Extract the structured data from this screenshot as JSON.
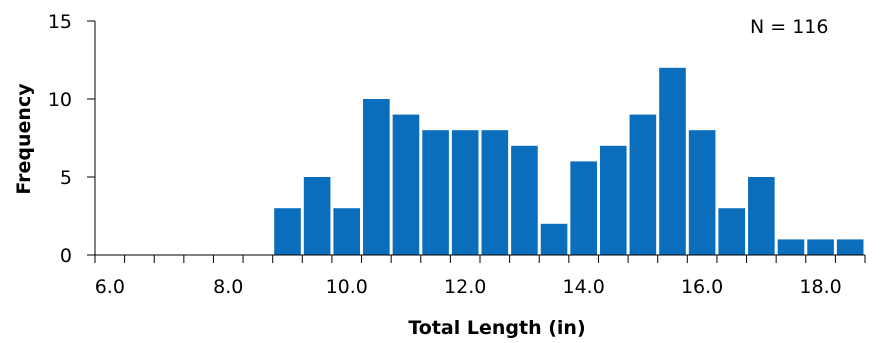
{
  "chart_data": {
    "type": "bar",
    "xlabel": "Total Length (in)",
    "ylabel": "Frequency",
    "annotation": "N = 116",
    "bin_width": 0.5,
    "xlim": [
      5.75,
      18.75
    ],
    "ylim": [
      0,
      15
    ],
    "x_ticks": [
      "6.0",
      "8.0",
      "10.0",
      "12.0",
      "14.0",
      "16.0",
      "18.0"
    ],
    "y_ticks": [
      "0",
      "5",
      "10",
      "15"
    ],
    "bins": [
      {
        "x": 9.0,
        "value": 3
      },
      {
        "x": 9.5,
        "value": 5
      },
      {
        "x": 10.0,
        "value": 3
      },
      {
        "x": 10.5,
        "value": 10
      },
      {
        "x": 11.0,
        "value": 9
      },
      {
        "x": 11.5,
        "value": 8
      },
      {
        "x": 12.0,
        "value": 8
      },
      {
        "x": 12.5,
        "value": 8
      },
      {
        "x": 13.0,
        "value": 7
      },
      {
        "x": 13.5,
        "value": 2
      },
      {
        "x": 14.0,
        "value": 6
      },
      {
        "x": 14.5,
        "value": 7
      },
      {
        "x": 15.0,
        "value": 9
      },
      {
        "x": 15.5,
        "value": 12
      },
      {
        "x": 16.0,
        "value": 8
      },
      {
        "x": 16.5,
        "value": 3
      },
      {
        "x": 17.0,
        "value": 5
      },
      {
        "x": 17.5,
        "value": 1
      },
      {
        "x": 18.0,
        "value": 1
      },
      {
        "x": 18.5,
        "value": 1
      }
    ],
    "bar_color": "#0a6ebd",
    "grid": false,
    "legend": "none"
  }
}
